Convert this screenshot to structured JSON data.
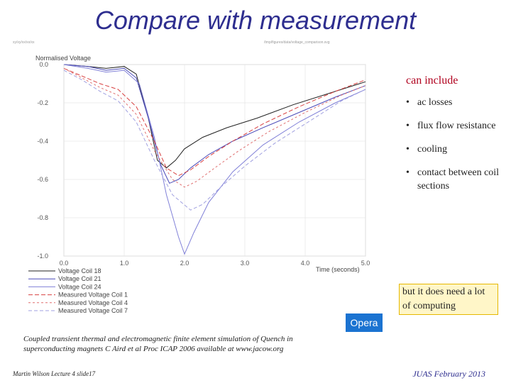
{
  "slide": {
    "title": "Compare with measurement",
    "header_left_tiny": "xy/xy/xx/xx/xx",
    "header_right_tiny": "/tmp/figures/data/voltage_comparison.svg",
    "side_heading": "can include",
    "bullets": [
      "ac losses",
      "flux flow resistance",
      "cooling",
      "contact between coil sections"
    ],
    "note": "but it does need a lot of computing",
    "logo": "Opera",
    "citation": "Coupled transient thermal and electromagnetic finite element simulation of Quench in superconducting magnets C Aird et al Proc ICAP 2006 available at www.jacow.org",
    "footer_left": "Martin Wilson Lecture 4 slide17",
    "footer_right": "JUAS February 2013"
  },
  "chart_data": {
    "type": "line",
    "ylabel": "Normalised Voltage",
    "xlabel": "Time (seconds)",
    "xlim": [
      0,
      5
    ],
    "ylim": [
      -1.0,
      0.0
    ],
    "x_ticks": [
      "0.0",
      "1.0",
      "2.0",
      "3.0",
      "4.0",
      "5.0"
    ],
    "y_ticks": [
      "0.0",
      "-0.2",
      "-0.4",
      "-0.6",
      "-0.8",
      "-1.0"
    ],
    "grid": true,
    "legend_placement": "bottom-left",
    "series": [
      {
        "name": "Voltage Coil 18",
        "color": "#222222",
        "dash": "solid",
        "x": [
          0.0,
          0.4,
          0.7,
          1.0,
          1.2,
          1.4,
          1.55,
          1.7,
          1.85,
          2.0,
          2.3,
          2.7,
          3.2,
          3.8,
          4.4,
          5.0
        ],
        "y": [
          0.0,
          -0.01,
          -0.02,
          -0.01,
          -0.05,
          -0.28,
          -0.5,
          -0.54,
          -0.5,
          -0.44,
          -0.38,
          -0.33,
          -0.28,
          -0.21,
          -0.15,
          -0.09
        ]
      },
      {
        "name": "Voltage Coil 21",
        "color": "#4a4ab8",
        "dash": "solid",
        "x": [
          0.0,
          0.4,
          0.7,
          1.0,
          1.2,
          1.4,
          1.6,
          1.75,
          1.9,
          2.1,
          2.4,
          2.8,
          3.3,
          3.9,
          4.5,
          5.0
        ],
        "y": [
          0.0,
          -0.01,
          -0.03,
          -0.02,
          -0.07,
          -0.28,
          -0.52,
          -0.62,
          -0.6,
          -0.54,
          -0.47,
          -0.4,
          -0.33,
          -0.25,
          -0.17,
          -0.11
        ]
      },
      {
        "name": "Voltage Coil 24",
        "color": "#8080d8",
        "dash": "solid",
        "x": [
          0.0,
          0.4,
          0.7,
          1.0,
          1.25,
          1.5,
          1.7,
          1.9,
          2.0,
          2.15,
          2.4,
          2.8,
          3.3,
          3.9,
          4.5,
          5.0
        ],
        "y": [
          0.0,
          -0.02,
          -0.04,
          -0.03,
          -0.1,
          -0.38,
          -0.68,
          -0.9,
          -0.99,
          -0.88,
          -0.72,
          -0.56,
          -0.42,
          -0.3,
          -0.2,
          -0.13
        ]
      },
      {
        "name": "Measured Voltage Coil 1",
        "color": "#d84040",
        "dash": "6,3",
        "x": [
          0.0,
          0.3,
          0.6,
          0.9,
          1.2,
          1.5,
          1.7,
          1.9,
          2.1,
          2.4,
          2.8,
          3.3,
          3.9,
          4.5,
          5.0
        ],
        "y": [
          -0.02,
          -0.06,
          -0.1,
          -0.13,
          -0.22,
          -0.4,
          -0.54,
          -0.58,
          -0.55,
          -0.48,
          -0.4,
          -0.31,
          -0.22,
          -0.14,
          -0.08
        ]
      },
      {
        "name": "Measured Voltage Coil 4",
        "color": "#e07070",
        "dash": "3,3",
        "x": [
          0.0,
          0.3,
          0.6,
          0.9,
          1.2,
          1.5,
          1.8,
          2.0,
          2.2,
          2.5,
          2.9,
          3.4,
          4.0,
          4.6,
          5.0
        ],
        "y": [
          -0.02,
          -0.07,
          -0.12,
          -0.16,
          -0.26,
          -0.45,
          -0.6,
          -0.64,
          -0.61,
          -0.54,
          -0.45,
          -0.35,
          -0.25,
          -0.16,
          -0.11
        ]
      },
      {
        "name": "Measured Voltage Coil 7",
        "color": "#a0a0e0",
        "dash": "5,3",
        "x": [
          0.0,
          0.3,
          0.6,
          0.9,
          1.2,
          1.5,
          1.8,
          2.1,
          2.3,
          2.6,
          3.0,
          3.5,
          4.1,
          4.6,
          5.0
        ],
        "y": [
          -0.03,
          -0.08,
          -0.14,
          -0.19,
          -0.3,
          -0.5,
          -0.68,
          -0.76,
          -0.73,
          -0.64,
          -0.53,
          -0.41,
          -0.29,
          -0.19,
          -0.13
        ]
      }
    ]
  }
}
